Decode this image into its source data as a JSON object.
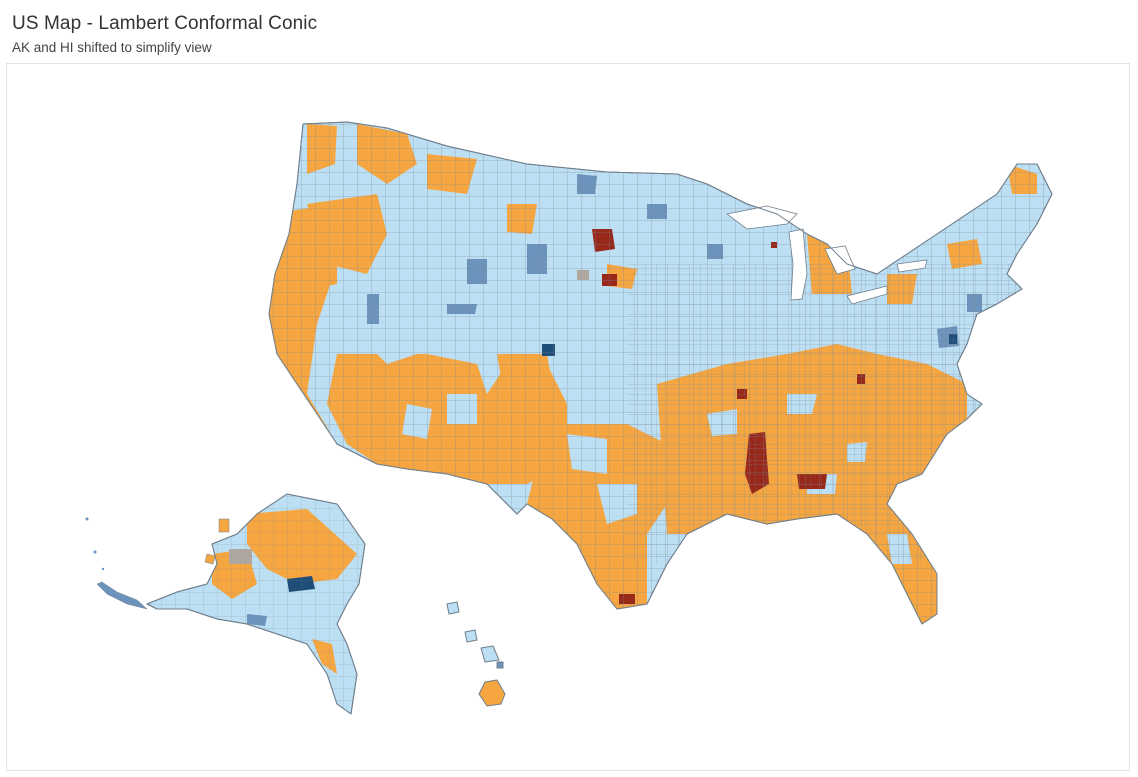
{
  "header": {
    "title": "US Map - Lambert Conformal Conic",
    "subtitle": "AK and HI shifted to simplify view"
  },
  "legend_colors": {
    "light_blue": "#bcdff3",
    "orange": "#f5a641",
    "steel_blue": "#6b93bb",
    "dark_blue": "#1f4e78",
    "dark_red": "#97281a",
    "gray": "#b0a8a0",
    "border": "#6f7f8c"
  },
  "regions": [
    "contiguous-us",
    "alaska",
    "hawaii"
  ]
}
